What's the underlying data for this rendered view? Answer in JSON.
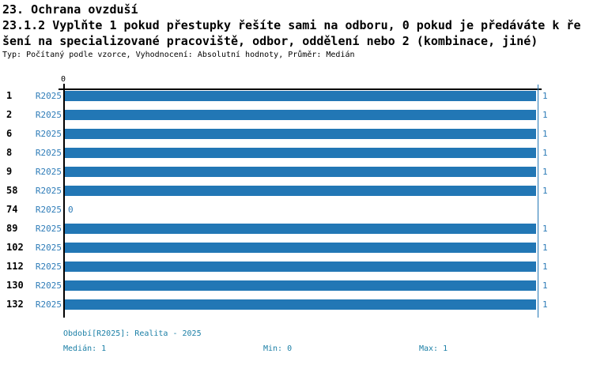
{
  "header": {
    "section_title": "23. Ochrana ovzduší",
    "question_line1": "23.1.2 Vyplňte 1 pokud přestupky řešíte sami na odboru, 0 pokud je předáváte k ře",
    "question_line2": "šení na specializované pracoviště, odbor, oddělení nebo 2 (kombinace, jiné)",
    "meta": "Typ: Počítaný podle vzorce, Vyhodnocení: Absolutní hodnoty, Průměr: Medián"
  },
  "chart_data": {
    "type": "bar",
    "orientation": "horizontal",
    "categories": [
      "1",
      "2",
      "6",
      "8",
      "9",
      "58",
      "74",
      "89",
      "102",
      "112",
      "130",
      "132"
    ],
    "series": [
      {
        "name": "R2025",
        "values": [
          1,
          1,
          1,
          1,
          1,
          1,
          0,
          1,
          1,
          1,
          1,
          1
        ]
      }
    ],
    "series_row_label": "R2025",
    "value_labels": [
      "1",
      "1",
      "1",
      "1",
      "1",
      "1",
      "0",
      "1",
      "1",
      "1",
      "1",
      "1"
    ],
    "xlim": [
      0,
      1
    ],
    "x_axis_ticks": [
      "0"
    ],
    "max_reference_line": 1,
    "grid": false,
    "legend_position": "none",
    "bar_color": "#2277b5",
    "label_color": "#2e7cb8",
    "axis_color": "#000000"
  },
  "footer": {
    "period": "Období[R2025]: Realita - 2025",
    "median": "Medián: 1",
    "min": "Min: 0",
    "max": "Max: 1",
    "text_color": "#1b7fa6"
  }
}
